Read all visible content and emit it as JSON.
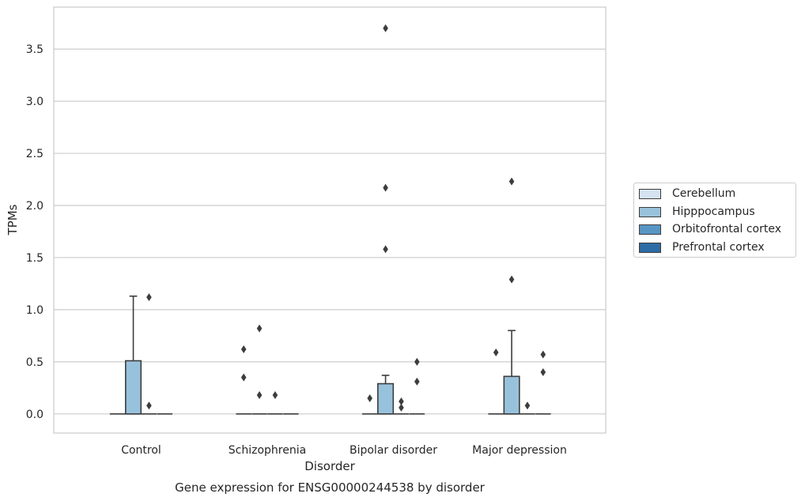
{
  "chart_data": {
    "type": "box",
    "title": "Gene expression for ENSG00000244538 by disorder",
    "xlabel": "Disorder",
    "ylabel": "TPMs",
    "categories": [
      "Control",
      "Schizophrenia",
      "Bipolar disorder",
      "Major depression"
    ],
    "ylim": [
      -0.18,
      3.85
    ],
    "yticks": [
      "0.0",
      "0.5",
      "1.0",
      "1.5",
      "2.0",
      "2.5",
      "3.0",
      "3.5"
    ],
    "grid": "horizontal",
    "legend_position": "right",
    "series": [
      {
        "name": "Cerebellum",
        "color": "#d5e3f1",
        "boxes": [
          {
            "q1": 0,
            "median": 0,
            "q3": 0,
            "whisker_low": 0,
            "whisker_high": 0,
            "outliers": []
          },
          {
            "q1": 0,
            "median": 0,
            "q3": 0,
            "whisker_low": 0,
            "whisker_high": 0,
            "outliers": [
              0.62,
              0.35
            ]
          },
          {
            "q1": 0,
            "median": 0,
            "q3": 0,
            "whisker_low": 0,
            "whisker_high": 0,
            "outliers": [
              0.15
            ]
          },
          {
            "q1": 0,
            "median": 0,
            "q3": 0,
            "whisker_low": 0,
            "whisker_high": 0,
            "outliers": [
              0.59
            ]
          }
        ]
      },
      {
        "name": "Hipppocampus",
        "color": "#98c2dc",
        "boxes": [
          {
            "q1": 0,
            "median": 0,
            "q3": 0.51,
            "whisker_low": 0,
            "whisker_high": 1.13,
            "outliers": []
          },
          {
            "q1": 0,
            "median": 0,
            "q3": 0,
            "whisker_low": 0,
            "whisker_high": 0,
            "outliers": [
              0.82,
              0.18
            ]
          },
          {
            "q1": 0,
            "median": 0,
            "q3": 0.29,
            "whisker_low": 0,
            "whisker_high": 0.37,
            "outliers": [
              3.7,
              2.17,
              1.58
            ]
          },
          {
            "q1": 0,
            "median": 0,
            "q3": 0.36,
            "whisker_low": 0,
            "whisker_high": 0.8,
            "outliers": [
              2.23,
              1.29
            ]
          }
        ]
      },
      {
        "name": "Orbitofrontal cortex",
        "color": "#5796c3",
        "boxes": [
          {
            "q1": 0,
            "median": 0,
            "q3": 0,
            "whisker_low": 0,
            "whisker_high": 0,
            "outliers": [
              1.12,
              0.08
            ]
          },
          {
            "q1": 0,
            "median": 0,
            "q3": 0,
            "whisker_low": 0,
            "whisker_high": 0,
            "outliers": [
              0.18
            ]
          },
          {
            "q1": 0,
            "median": 0,
            "q3": 0,
            "whisker_low": 0,
            "whisker_high": 0,
            "outliers": [
              0.12,
              0.06
            ]
          },
          {
            "q1": 0,
            "median": 0,
            "q3": 0,
            "whisker_low": 0,
            "whisker_high": 0,
            "outliers": [
              0.08
            ]
          }
        ]
      },
      {
        "name": "Prefrontal cortex",
        "color": "#2d6ba4",
        "boxes": [
          {
            "q1": 0,
            "median": 0,
            "q3": 0,
            "whisker_low": 0,
            "whisker_high": 0,
            "outliers": []
          },
          {
            "q1": 0,
            "median": 0,
            "q3": 0,
            "whisker_low": 0,
            "whisker_high": 0,
            "outliers": []
          },
          {
            "q1": 0,
            "median": 0,
            "q3": 0,
            "whisker_low": 0,
            "whisker_high": 0,
            "outliers": [
              0.5,
              0.31
            ]
          },
          {
            "q1": 0,
            "median": 0,
            "q3": 0,
            "whisker_low": 0,
            "whisker_high": 0,
            "outliers": [
              0.57,
              0.4
            ]
          }
        ]
      }
    ]
  }
}
